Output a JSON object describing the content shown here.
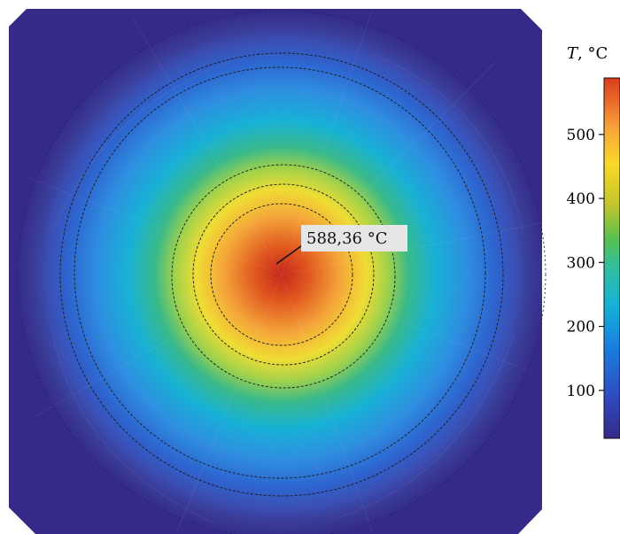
{
  "chart_data": {
    "type": "heatmap",
    "title": "",
    "colorbar": {
      "label_var": "T",
      "label_unit": ", °C",
      "ticks": [
        100,
        200,
        300,
        400,
        500
      ],
      "tick_labels": [
        "100",
        "200",
        "300",
        "400",
        "500"
      ],
      "range": [
        25,
        588.36
      ],
      "colormap": "parula"
    },
    "field": {
      "shape": "radial temperature distribution on a disk",
      "max_value": 588.36,
      "background_value": 25
    },
    "annotation": {
      "text": "588,36 °C",
      "value": 588.36
    },
    "colors": {
      "background": "#352a87",
      "outer_ring": "#2c5fd4",
      "mid_ring": "#14b8d4",
      "green_ring": "#4cc07a",
      "yellow_ring": "#f5d42a",
      "orange_core": "#f08c2c",
      "center": "#d03a16"
    }
  }
}
